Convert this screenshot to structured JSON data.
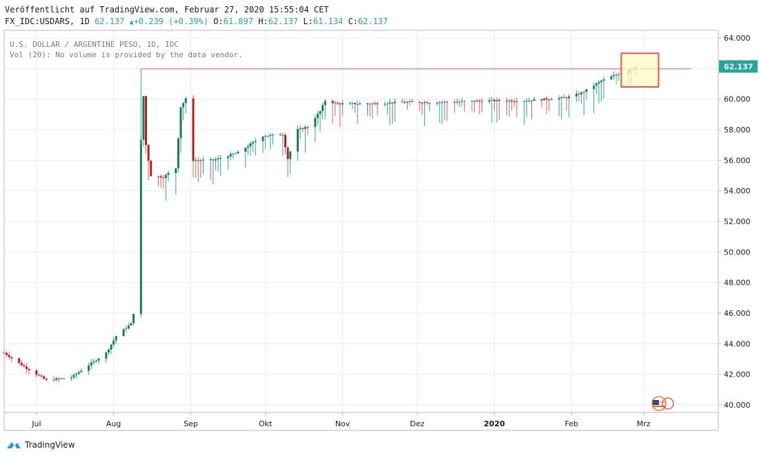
{
  "header": {
    "published": "Veröffentlicht auf TradingView.com, Februar 27, 2020 15:55:04 CET",
    "symbol": "FX_IDC:USDARS, 1D",
    "last": "62.137",
    "change": "+0.239 (+0.39%)",
    "open_label": "O:",
    "open": "61.897",
    "high_label": "H:",
    "high": "62.137",
    "low_label": "L:",
    "low": "61.134",
    "close_label": "C:",
    "close": "62.137"
  },
  "legend": {
    "title": "U.S. DOLLAR / ARGENTINE PESO, 1D, IDC",
    "volume": "Vol (20): No volume is provided by the data vendor."
  },
  "footer": {
    "brand": "TradingView"
  },
  "colors": {
    "up": "#26a69a",
    "down": "#ef5350",
    "upBody": "#1b7a5a",
    "downBody": "#b71c1c",
    "grid": "#e8ecf3",
    "line": "#ef5350",
    "box": "#ef5350",
    "boxFill": "#fff9c4",
    "label": "#26a69a"
  },
  "chart_data": {
    "type": "candlestick",
    "x_ticks": [
      {
        "label": "Jul",
        "date": "2019-07-01",
        "bold": false
      },
      {
        "label": "Aug",
        "date": "2019-08-01",
        "bold": false
      },
      {
        "label": "Sep",
        "date": "2019-09-01",
        "bold": false
      },
      {
        "label": "Okt",
        "date": "2019-10-01",
        "bold": false
      },
      {
        "label": "Nov",
        "date": "2019-11-01",
        "bold": false
      },
      {
        "label": "Dez",
        "date": "2019-12-01",
        "bold": false
      },
      {
        "label": "2020",
        "date": "2020-01-01",
        "bold": true
      },
      {
        "label": "Feb",
        "date": "2020-02-01",
        "bold": false
      },
      {
        "label": "Mrz",
        "date": "2020-03-01",
        "bold": false
      }
    ],
    "y_ticks": [
      "40.000",
      "42.000",
      "44.000",
      "46.000",
      "48.000",
      "50.000",
      "52.000",
      "54.000",
      "56.000",
      "58.000",
      "60.000",
      "62.000",
      "64.000"
    ],
    "ylim": [
      39.5,
      64.5
    ],
    "xlim": [
      "2019-06-18",
      "2020-03-31"
    ],
    "last_price_label": "62.137",
    "last_price": 62.137,
    "resistance_line": {
      "from": "2019-08-12",
      "to": "2020-03-20",
      "value": 61.98
    },
    "highlight_box": {
      "from": "2020-02-21",
      "to": "2020-03-07",
      "y_low": 60.8,
      "y_high": 63.0
    },
    "anchors": [
      {
        "date": "2019-06-18",
        "close": 43.4
      },
      {
        "date": "2019-06-26",
        "close": 42.5
      },
      {
        "date": "2019-07-05",
        "close": 41.6
      },
      {
        "date": "2019-07-15",
        "close": 41.8
      },
      {
        "date": "2019-07-22",
        "close": 42.6
      },
      {
        "date": "2019-07-29",
        "close": 43.4
      },
      {
        "date": "2019-08-02",
        "close": 44.5
      },
      {
        "date": "2019-08-08",
        "close": 45.3
      },
      {
        "date": "2019-08-09",
        "close": 46.0
      },
      {
        "date": "2019-08-12",
        "close": 57.3
      },
      {
        "date": "2019-08-13",
        "close": 60.2
      },
      {
        "date": "2019-08-14",
        "close": 57.0
      },
      {
        "date": "2019-08-16",
        "close": 55.0
      },
      {
        "date": "2019-08-21",
        "close": 54.9
      },
      {
        "date": "2019-08-26",
        "close": 55.5
      },
      {
        "date": "2019-08-28",
        "close": 59.5
      },
      {
        "date": "2019-08-30",
        "close": 60.0
      },
      {
        "date": "2019-09-02",
        "close": 56.0
      },
      {
        "date": "2019-09-10",
        "close": 56.0
      },
      {
        "date": "2019-09-20",
        "close": 56.5
      },
      {
        "date": "2019-09-30",
        "close": 57.6
      },
      {
        "date": "2019-10-08",
        "close": 57.7
      },
      {
        "date": "2019-10-10",
        "close": 56.1
      },
      {
        "date": "2019-10-14",
        "close": 58.0
      },
      {
        "date": "2019-10-18",
        "close": 58.2
      },
      {
        "date": "2019-10-23",
        "close": 59.2
      },
      {
        "date": "2019-10-25",
        "close": 59.9
      },
      {
        "date": "2019-10-30",
        "close": 59.7
      },
      {
        "date": "2019-11-12",
        "close": 59.7
      },
      {
        "date": "2019-11-25",
        "close": 59.8
      },
      {
        "date": "2019-12-10",
        "close": 59.8
      },
      {
        "date": "2019-12-30",
        "close": 59.9
      },
      {
        "date": "2020-01-13",
        "close": 59.9
      },
      {
        "date": "2020-01-30",
        "close": 60.1
      },
      {
        "date": "2020-02-05",
        "close": 60.4
      },
      {
        "date": "2020-02-13",
        "close": 61.2
      },
      {
        "date": "2020-02-19",
        "close": 61.6
      },
      {
        "date": "2020-02-27",
        "close": 62.137
      }
    ]
  }
}
